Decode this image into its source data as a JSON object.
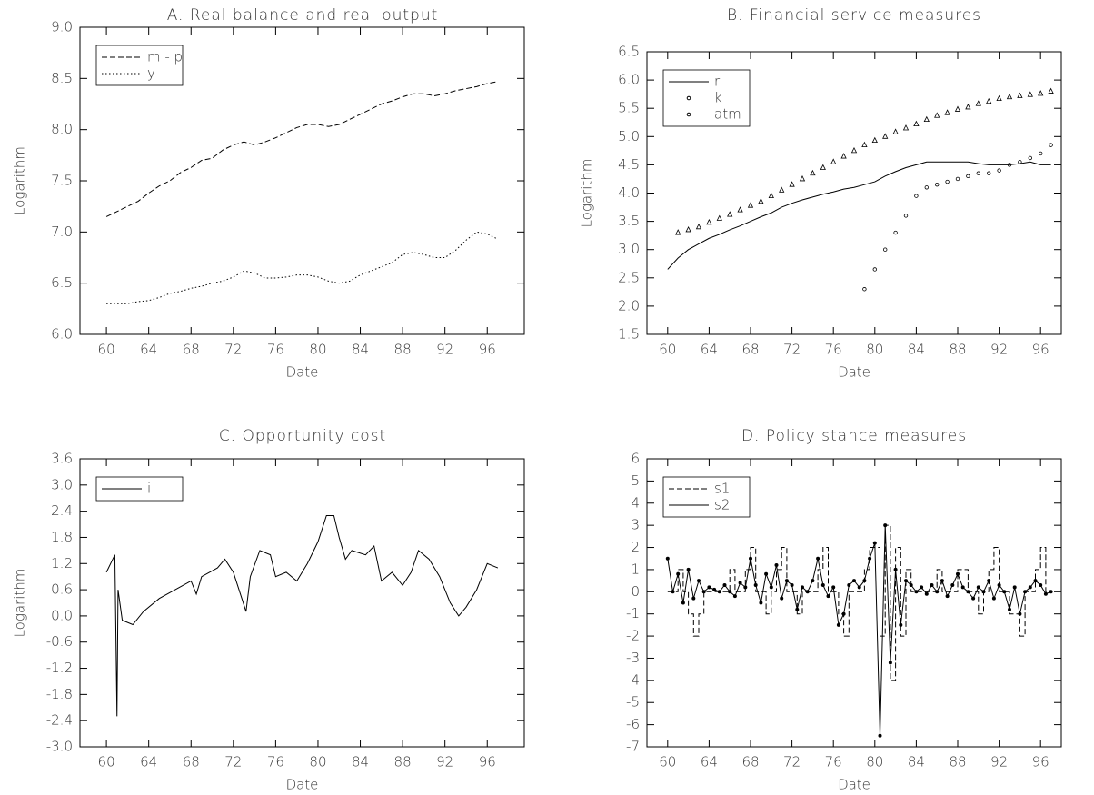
{
  "chart_data": [
    {
      "type": "line",
      "title": "A. Real balance and real output",
      "xlabel": "Date",
      "ylabel": "Logarithm",
      "legend": "upper left",
      "x": [
        1960,
        1961,
        1962,
        1963,
        1964,
        1965,
        1966,
        1967,
        1968,
        1969,
        1970,
        1971,
        1972,
        1973,
        1974,
        1975,
        1976,
        1977,
        1978,
        1979,
        1980,
        1981,
        1982,
        1983,
        1984,
        1985,
        1986,
        1987,
        1988,
        1989,
        1990,
        1991,
        1992,
        1993,
        1994,
        1995,
        1996,
        1997
      ],
      "xlim": [
        1957.5,
        1999.5
      ],
      "xticks": [
        {
          "value": 1960,
          "label": "60"
        },
        {
          "value": 1964,
          "label": "64"
        },
        {
          "value": 1968,
          "label": "68"
        },
        {
          "value": 1972,
          "label": "72"
        },
        {
          "value": 1976,
          "label": "76"
        },
        {
          "value": 1980,
          "label": "80"
        },
        {
          "value": 1984,
          "label": "84"
        },
        {
          "value": 1988,
          "label": "88"
        },
        {
          "value": 1992,
          "label": "92"
        },
        {
          "value": 1996,
          "label": "96"
        }
      ],
      "ylim": [
        6,
        9
      ],
      "yticks": [
        {
          "value": 6,
          "label": "6.0"
        },
        6.5,
        {
          "value": 7,
          "label": "7.0"
        },
        7.5,
        {
          "value": 8,
          "label": "8.0"
        },
        8.5,
        {
          "value": 9,
          "label": "9.0"
        }
      ],
      "series": [
        {
          "name": "m - p",
          "color": "#000000",
          "line_style": "dashed",
          "values": [
            7.15,
            7.2,
            7.25,
            7.3,
            7.38,
            7.45,
            7.5,
            7.58,
            7.63,
            7.7,
            7.72,
            7.8,
            7.85,
            7.88,
            7.85,
            7.88,
            7.92,
            7.97,
            8.02,
            8.05,
            8.05,
            8.03,
            8.05,
            8.1,
            8.15,
            8.2,
            8.25,
            8.28,
            8.32,
            8.35,
            8.35,
            8.33,
            8.35,
            8.38,
            8.4,
            8.42,
            8.45,
            8.47
          ]
        },
        {
          "name": "y",
          "color": "#000000",
          "line_style": "dotted",
          "values": [
            6.3,
            6.3,
            6.3,
            6.32,
            6.33,
            6.36,
            6.4,
            6.42,
            6.45,
            6.47,
            6.5,
            6.52,
            6.56,
            6.62,
            6.6,
            6.55,
            6.55,
            6.56,
            6.58,
            6.58,
            6.56,
            6.52,
            6.5,
            6.52,
            6.58,
            6.62,
            6.66,
            6.7,
            6.78,
            6.8,
            6.78,
            6.75,
            6.75,
            6.82,
            6.92,
            7.0,
            6.98,
            6.93
          ]
        }
      ]
    },
    {
      "type": "line",
      "title": "B. Financial service measures",
      "xlabel": "Date",
      "ylabel": "Logarithm",
      "legend": "upper left",
      "x": [
        1960,
        1961,
        1962,
        1963,
        1964,
        1965,
        1966,
        1967,
        1968,
        1969,
        1970,
        1971,
        1972,
        1973,
        1974,
        1975,
        1976,
        1977,
        1978,
        1979,
        1980,
        1981,
        1982,
        1983,
        1984,
        1985,
        1986,
        1987,
        1988,
        1989,
        1990,
        1991,
        1992,
        1993,
        1994,
        1995,
        1996,
        1997
      ],
      "xlim": [
        1958,
        1998
      ],
      "xticks": [
        {
          "value": 1960,
          "label": "60"
        },
        {
          "value": 1964,
          "label": "64"
        },
        {
          "value": 1968,
          "label": "68"
        },
        {
          "value": 1972,
          "label": "72"
        },
        {
          "value": 1976,
          "label": "76"
        },
        {
          "value": 1980,
          "label": "80"
        },
        {
          "value": 1984,
          "label": "84"
        },
        {
          "value": 1988,
          "label": "88"
        },
        {
          "value": 1992,
          "label": "92"
        },
        {
          "value": 1996,
          "label": "96"
        }
      ],
      "ylim": [
        1.5,
        6.5
      ],
      "yticks": [
        1.5,
        {
          "value": 2,
          "label": "2.0"
        },
        2.5,
        {
          "value": 3,
          "label": "3.0"
        },
        3.5,
        {
          "value": 4,
          "label": "4.0"
        },
        4.5,
        {
          "value": 5,
          "label": "5.0"
        },
        5.5,
        {
          "value": 6,
          "label": "6.0"
        },
        6.5
      ],
      "series": [
        {
          "name": "r",
          "color": "#000000",
          "line_style": "solid",
          "values": [
            2.65,
            2.85,
            3.0,
            3.1,
            3.2,
            3.27,
            3.35,
            3.42,
            3.5,
            3.58,
            3.65,
            3.75,
            3.82,
            3.88,
            3.93,
            3.98,
            4.02,
            4.07,
            4.1,
            4.15,
            4.2,
            4.3,
            4.38,
            4.45,
            4.5,
            4.55,
            4.55,
            4.55,
            4.55,
            4.55,
            4.52,
            4.5,
            4.5,
            4.5,
            4.52,
            4.55,
            4.5,
            4.5
          ]
        },
        {
          "name": "k",
          "color": "#000000",
          "line_style": "none",
          "marker": "triangle",
          "values": [
            null,
            3.3,
            3.35,
            3.4,
            3.48,
            3.55,
            3.62,
            3.7,
            3.78,
            3.85,
            3.95,
            4.05,
            4.15,
            4.25,
            4.35,
            4.45,
            4.55,
            4.65,
            4.75,
            4.85,
            4.93,
            5.0,
            5.08,
            5.15,
            5.22,
            5.3,
            5.37,
            5.42,
            5.48,
            5.52,
            5.58,
            5.62,
            5.67,
            5.7,
            5.72,
            5.74,
            5.76,
            5.8
          ]
        },
        {
          "name": "atm",
          "color": "#000000",
          "line_style": "none",
          "marker": "circle",
          "values": [
            null,
            null,
            null,
            null,
            null,
            null,
            null,
            null,
            null,
            null,
            null,
            null,
            null,
            null,
            null,
            null,
            null,
            null,
            null,
            2.3,
            2.65,
            3.0,
            3.3,
            3.6,
            3.95,
            4.1,
            4.15,
            4.2,
            4.25,
            4.3,
            4.35,
            4.35,
            4.4,
            4.5,
            4.55,
            4.62,
            4.7,
            4.85
          ]
        }
      ]
    },
    {
      "type": "line",
      "title": "C. Opportunity cost",
      "xlabel": "Date",
      "ylabel": "Logarithm",
      "legend": "upper left",
      "x": [
        1960,
        1960.8,
        1961,
        1961.1,
        1961.5,
        1962.5,
        1963.5,
        1965,
        1966.5,
        1968,
        1968.5,
        1969,
        1970.5,
        1971.2,
        1972,
        1972.8,
        1973.2,
        1973.6,
        1974.5,
        1975.5,
        1976,
        1977,
        1978,
        1979,
        1980,
        1980.8,
        1981.5,
        1982,
        1982.6,
        1983.2,
        1984.5,
        1985.3,
        1986,
        1987,
        1988,
        1988.8,
        1989.5,
        1990.5,
        1991.5,
        1992.5,
        1993.3,
        1994,
        1995,
        1996,
        1997
      ],
      "xlim": [
        1957.5,
        1999.5
      ],
      "xticks": [
        {
          "value": 1960,
          "label": "60"
        },
        {
          "value": 1964,
          "label": "64"
        },
        {
          "value": 1968,
          "label": "68"
        },
        {
          "value": 1972,
          "label": "72"
        },
        {
          "value": 1976,
          "label": "76"
        },
        {
          "value": 1980,
          "label": "80"
        },
        {
          "value": 1984,
          "label": "84"
        },
        {
          "value": 1988,
          "label": "88"
        },
        {
          "value": 1992,
          "label": "92"
        },
        {
          "value": 1996,
          "label": "96"
        }
      ],
      "ylim": [
        -3,
        3.6
      ],
      "yticks": [
        {
          "value": -3,
          "label": "-3.0"
        },
        -2.4,
        -1.8,
        -1.2,
        -0.6,
        {
          "value": 0,
          "label": "0.0"
        },
        0.6,
        1.2,
        1.8,
        2.4,
        {
          "value": 3,
          "label": "3.0"
        },
        3.6
      ],
      "series": [
        {
          "name": "i",
          "color": "#000000",
          "line_style": "solid",
          "values": [
            1.0,
            1.4,
            -2.3,
            0.6,
            -0.1,
            -0.2,
            0.1,
            0.4,
            0.6,
            0.8,
            0.5,
            0.9,
            1.1,
            1.3,
            1.0,
            0.4,
            0.1,
            0.9,
            1.5,
            1.4,
            0.9,
            1.0,
            0.8,
            1.2,
            1.7,
            2.3,
            2.3,
            1.8,
            1.3,
            1.5,
            1.4,
            1.6,
            0.8,
            1.0,
            0.7,
            1.0,
            1.5,
            1.3,
            0.9,
            0.3,
            0.0,
            0.2,
            0.6,
            1.2,
            1.1
          ]
        }
      ]
    },
    {
      "type": "line",
      "title": "D. Policy stance measures",
      "xlabel": "Date",
      "legend": "upper left",
      "x": [
        1960,
        1960.5,
        1961,
        1961.5,
        1962,
        1962.5,
        1963,
        1963.5,
        1964,
        1964.5,
        1965,
        1965.5,
        1966,
        1966.5,
        1967,
        1967.5,
        1968,
        1968.5,
        1969,
        1969.5,
        1970,
        1970.5,
        1971,
        1971.5,
        1972,
        1972.5,
        1973,
        1973.5,
        1974,
        1974.5,
        1975,
        1975.5,
        1976,
        1976.5,
        1977,
        1977.5,
        1978,
        1978.5,
        1979,
        1979.5,
        1980,
        1980.5,
        1981,
        1981.5,
        1982,
        1982.5,
        1983,
        1983.5,
        1984,
        1984.5,
        1985,
        1985.5,
        1986,
        1986.5,
        1987,
        1987.5,
        1988,
        1988.5,
        1989,
        1989.5,
        1990,
        1990.5,
        1991,
        1991.5,
        1992,
        1992.5,
        1993,
        1993.5,
        1994,
        1994.5,
        1995,
        1995.5,
        1996,
        1996.5,
        1997
      ],
      "xlim": [
        1958,
        1998
      ],
      "xticks": [
        {
          "value": 1960,
          "label": "60"
        },
        {
          "value": 1964,
          "label": "64"
        },
        {
          "value": 1968,
          "label": "68"
        },
        {
          "value": 1972,
          "label": "72"
        },
        {
          "value": 1976,
          "label": "76"
        },
        {
          "value": 1980,
          "label": "80"
        },
        {
          "value": 1984,
          "label": "84"
        },
        {
          "value": 1988,
          "label": "88"
        },
        {
          "value": 1992,
          "label": "92"
        },
        {
          "value": 1996,
          "label": "96"
        }
      ],
      "ylim": [
        -7,
        6
      ],
      "yticks": [
        -7,
        -6,
        -5,
        -4,
        -3,
        -2,
        -1,
        0,
        1,
        2,
        3,
        4,
        5,
        6
      ],
      "series": [
        {
          "name": "s1",
          "color": "#000000",
          "line_style": "dashed",
          "drawstyle": "steps",
          "values": [
            0,
            0,
            1,
            0,
            -1,
            -2,
            -1,
            0,
            0,
            0,
            0,
            0,
            1,
            0,
            0,
            1,
            2,
            0,
            0,
            -1,
            0,
            1,
            2,
            0,
            0,
            -1,
            0,
            0,
            0,
            1,
            2,
            0,
            0,
            -1,
            -2,
            0,
            0,
            0,
            1,
            2,
            2,
            -2,
            3,
            -4,
            2,
            -2,
            1,
            0,
            0,
            0,
            0,
            0,
            1,
            0,
            0,
            0,
            1,
            1,
            0,
            0,
            -1,
            0,
            1,
            2,
            0,
            0,
            -1,
            -1,
            -2,
            0,
            0,
            1,
            2,
            0,
            0
          ]
        },
        {
          "name": "s2",
          "color": "#000000",
          "line_style": "solid",
          "marker": "dot",
          "values": [
            1.5,
            0,
            0.8,
            -0.5,
            1.0,
            -0.3,
            0.5,
            0,
            0.2,
            0.1,
            0,
            0.3,
            0,
            -0.2,
            0.4,
            0.2,
            1.5,
            0.3,
            -0.5,
            0.8,
            0.2,
            1.2,
            -0.3,
            0.5,
            0.3,
            -0.8,
            0.2,
            0,
            0.5,
            1.5,
            0.3,
            -0.2,
            0.2,
            -1.5,
            -1.0,
            0.3,
            0.5,
            0.2,
            0.5,
            1.5,
            2.2,
            -6.5,
            3.0,
            -3.2,
            1.0,
            -1.5,
            0.5,
            0.3,
            0,
            0.2,
            -0.1,
            0.3,
            0,
            0.5,
            -0.2,
            0.3,
            0.8,
            0.2,
            0,
            -0.3,
            0.2,
            0,
            0.5,
            -0.3,
            0.3,
            0,
            -0.8,
            0.2,
            -1.0,
            0,
            0.2,
            0.5,
            0.3,
            -0.1,
            0
          ]
        }
      ]
    }
  ]
}
